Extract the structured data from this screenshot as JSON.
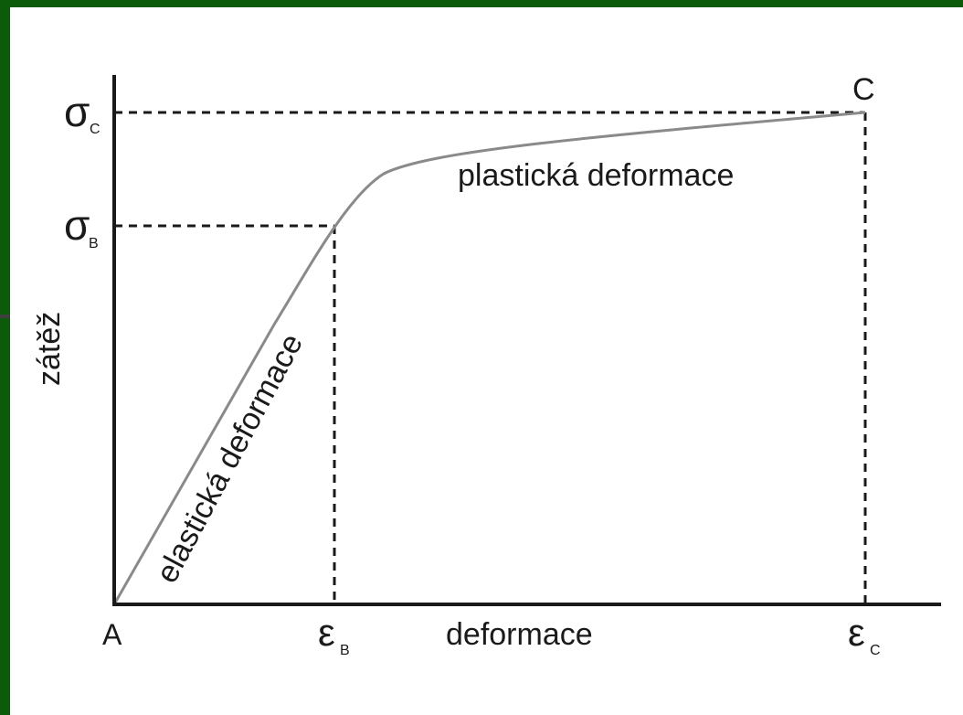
{
  "colors": {
    "background_frame": "#0b5b0b",
    "panel": "#ffffff",
    "axis": "#1a1a1a",
    "curve": "#8a8a8a",
    "guide": "#1a1a1a"
  },
  "axes": {
    "y_label": "zátěž",
    "x_label": "deformace",
    "origin_label": "A"
  },
  "points": {
    "yield": {
      "stress_symbol": "σ",
      "stress_sub": "B",
      "strain_symbol": "ε",
      "strain_sub": "B"
    },
    "ultimate": {
      "label": "C",
      "stress_symbol": "σ",
      "stress_sub": "C",
      "strain_symbol": "ε",
      "strain_sub": "C"
    }
  },
  "regions": {
    "elastic": "elastická deformace",
    "plastic": "plastická deformace"
  }
}
